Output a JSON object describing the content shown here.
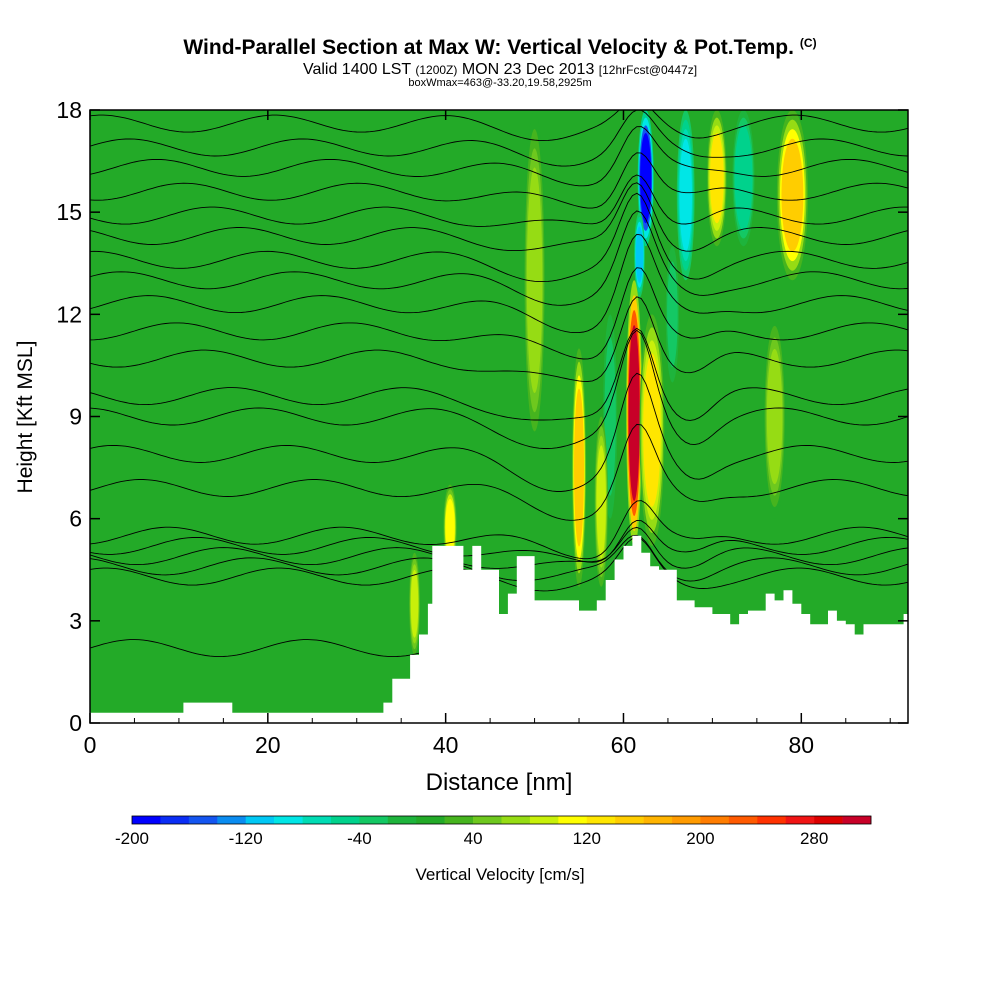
{
  "header": {
    "title": "Wind-Parallel Section at Max W: Vertical Velocity & Pot.Temp.",
    "title_mark": "(C)",
    "valid_line_a": "Valid 1400 LST",
    "valid_line_b": "(1200Z)",
    "valid_line_c": "MON 23 Dec 2013",
    "valid_line_d": "[12hrFcst@0447z]",
    "box_line": "boxWmax=463@-33.20,19.58,2925m"
  },
  "chart_data": {
    "type": "heatmap",
    "xlabel": "Distance [nm]",
    "ylabel": "Height [Kft MSL]",
    "xlim": [
      0,
      92
    ],
    "ylim": [
      0,
      18
    ],
    "x_ticks": [
      "0",
      "20",
      "40",
      "60",
      "80"
    ],
    "y_ticks": [
      "0",
      "3",
      "6",
      "9",
      "12",
      "15",
      "18"
    ],
    "colorbar": {
      "label": "Vertical Velocity [cm/s]",
      "tick_labels": [
        "-200",
        "-120",
        "-40",
        "40",
        "120",
        "200",
        "280"
      ],
      "levels": [
        -200,
        -180,
        -160,
        -140,
        -120,
        -100,
        -80,
        -60,
        -40,
        -20,
        0,
        20,
        40,
        60,
        80,
        100,
        120,
        140,
        160,
        180,
        200,
        220,
        240,
        260,
        280,
        300,
        320
      ],
      "colors": [
        "#0000ff",
        "#0a2df5",
        "#1455f0",
        "#0a8cf0",
        "#00c8f5",
        "#00e6e6",
        "#00dcb4",
        "#00d28c",
        "#14c864",
        "#1eb43c",
        "#23aa28",
        "#46b41e",
        "#6ec81e",
        "#96dc14",
        "#c8f00a",
        "#ffff00",
        "#ffe600",
        "#ffcd00",
        "#ffb400",
        "#ff9b00",
        "#ff7d00",
        "#ff5a00",
        "#ff3200",
        "#f01414",
        "#dc0000",
        "#c80028"
      ]
    },
    "terrain_kft": [
      [
        0,
        0.3
      ],
      [
        10,
        0.3
      ],
      [
        10.5,
        0.6
      ],
      [
        15.5,
        0.6
      ],
      [
        16,
        0.3
      ],
      [
        32,
        0.3
      ],
      [
        33,
        0.6
      ],
      [
        34,
        1.3
      ],
      [
        36,
        2.0
      ],
      [
        37,
        2.6
      ],
      [
        38,
        3.5
      ],
      [
        38.5,
        5.2
      ],
      [
        41,
        5.2
      ],
      [
        42,
        4.5
      ],
      [
        43,
        5.2
      ],
      [
        44,
        4.5
      ],
      [
        46,
        3.2
      ],
      [
        47,
        3.8
      ],
      [
        48,
        4.9
      ],
      [
        50,
        3.6
      ],
      [
        55,
        3.3
      ],
      [
        57,
        3.6
      ],
      [
        58,
        4.2
      ],
      [
        59,
        4.8
      ],
      [
        60,
        5.2
      ],
      [
        61,
        5.5
      ],
      [
        62,
        5.0
      ],
      [
        63,
        4.6
      ],
      [
        64,
        4.5
      ],
      [
        66,
        3.6
      ],
      [
        68,
        3.4
      ],
      [
        70,
        3.2
      ],
      [
        72,
        2.9
      ],
      [
        73,
        3.2
      ],
      [
        74,
        3.3
      ],
      [
        76,
        3.8
      ],
      [
        77,
        3.6
      ],
      [
        78,
        3.9
      ],
      [
        79,
        3.5
      ],
      [
        80,
        3.2
      ],
      [
        81,
        2.9
      ],
      [
        83,
        3.3
      ],
      [
        84,
        3.0
      ],
      [
        85,
        2.9
      ],
      [
        86,
        2.6
      ],
      [
        87,
        2.9
      ],
      [
        91,
        2.9
      ],
      [
        91.5,
        3.2
      ],
      [
        92,
        3.2
      ]
    ],
    "updraft_bands": [
      {
        "x": 55,
        "width": 1.6,
        "ymin": 4.0,
        "ymax": 11,
        "w": 150
      },
      {
        "x": 61.2,
        "width": 1.8,
        "ymin": 5.2,
        "ymax": 13,
        "w": 300
      },
      {
        "x": 63.2,
        "width": 2.8,
        "ymin": 5.2,
        "ymax": 12,
        "w": 130
      },
      {
        "x": 70.5,
        "width": 2.2,
        "ymin": 14,
        "ymax": 18,
        "w": 130
      },
      {
        "x": 79,
        "width": 3.5,
        "ymin": 13,
        "ymax": 18,
        "w": 150
      },
      {
        "x": 77,
        "width": 2.5,
        "ymin": 6,
        "ymax": 12,
        "w": 70
      },
      {
        "x": 40.5,
        "width": 1.5,
        "ymin": 4.5,
        "ymax": 7,
        "w": 110
      },
      {
        "x": 36.5,
        "width": 1.2,
        "ymin": 2.0,
        "ymax": 5,
        "w": 90
      },
      {
        "x": 50,
        "width": 2.5,
        "ymin": 8,
        "ymax": 18,
        "w": 70
      },
      {
        "x": 57.5,
        "width": 1.5,
        "ymin": 4.0,
        "ymax": 9,
        "w": 90
      }
    ],
    "downdraft_bands": [
      {
        "x": 62.5,
        "width": 1.8,
        "ymin": 14,
        "ymax": 18,
        "w": -200
      },
      {
        "x": 61.8,
        "width": 1.2,
        "ymin": 12.5,
        "ymax": 15,
        "w": -120
      },
      {
        "x": 67,
        "width": 2.0,
        "ymin": 13,
        "ymax": 18,
        "w": -90
      },
      {
        "x": 73.5,
        "width": 2.5,
        "ymin": 14,
        "ymax": 18,
        "w": -60
      },
      {
        "x": 58.5,
        "width": 1.6,
        "ymin": 6,
        "ymax": 12,
        "w": -40
      },
      {
        "x": 65.5,
        "width": 1.5,
        "ymin": 10,
        "ymax": 14,
        "w": -40
      }
    ],
    "theta_contours_kft": [
      {
        "base": 2.2,
        "dip": 0.2,
        "peak": 1.5
      },
      {
        "base": 4.3,
        "dip": 0.2,
        "peak": 1.0
      },
      {
        "base": 4.6,
        "dip": 0.3,
        "peak": 1.0
      },
      {
        "base": 4.9,
        "dip": 0.4,
        "peak": 1.2
      },
      {
        "base": 5.2,
        "dip": 0.5,
        "peak": 1.2
      },
      {
        "base": 5.5,
        "dip": 0.5,
        "peak": 1.3
      },
      {
        "base": 6.9,
        "dip": 0.7,
        "peak": 2.0
      },
      {
        "base": 7.9,
        "dip": 0.9,
        "peak": 2.5
      },
      {
        "base": 9.0,
        "dip": 0.9,
        "peak": 2.8
      },
      {
        "base": 9.6,
        "dip": 0.9,
        "peak": 2.5
      },
      {
        "base": 10.7,
        "dip": 0.8,
        "peak": 2.4
      },
      {
        "base": 11.5,
        "dip": 0.7,
        "peak": 2.3
      },
      {
        "base": 12.3,
        "dip": 0.6,
        "peak": 2.2
      },
      {
        "base": 13.0,
        "dip": 0.5,
        "peak": 2.0
      },
      {
        "base": 13.6,
        "dip": 0.5,
        "peak": 2.0
      },
      {
        "base": 14.3,
        "dip": 0.4,
        "peak": 1.8
      },
      {
        "base": 14.9,
        "dip": 0.4,
        "peak": 1.6
      },
      {
        "base": 15.6,
        "dip": 0.4,
        "peak": 1.5
      },
      {
        "base": 16.3,
        "dip": 0.3,
        "peak": 1.3
      },
      {
        "base": 16.9,
        "dip": 0.3,
        "peak": 1.0
      },
      {
        "base": 17.6,
        "dip": 0.3,
        "peak": 0.6
      }
    ]
  }
}
